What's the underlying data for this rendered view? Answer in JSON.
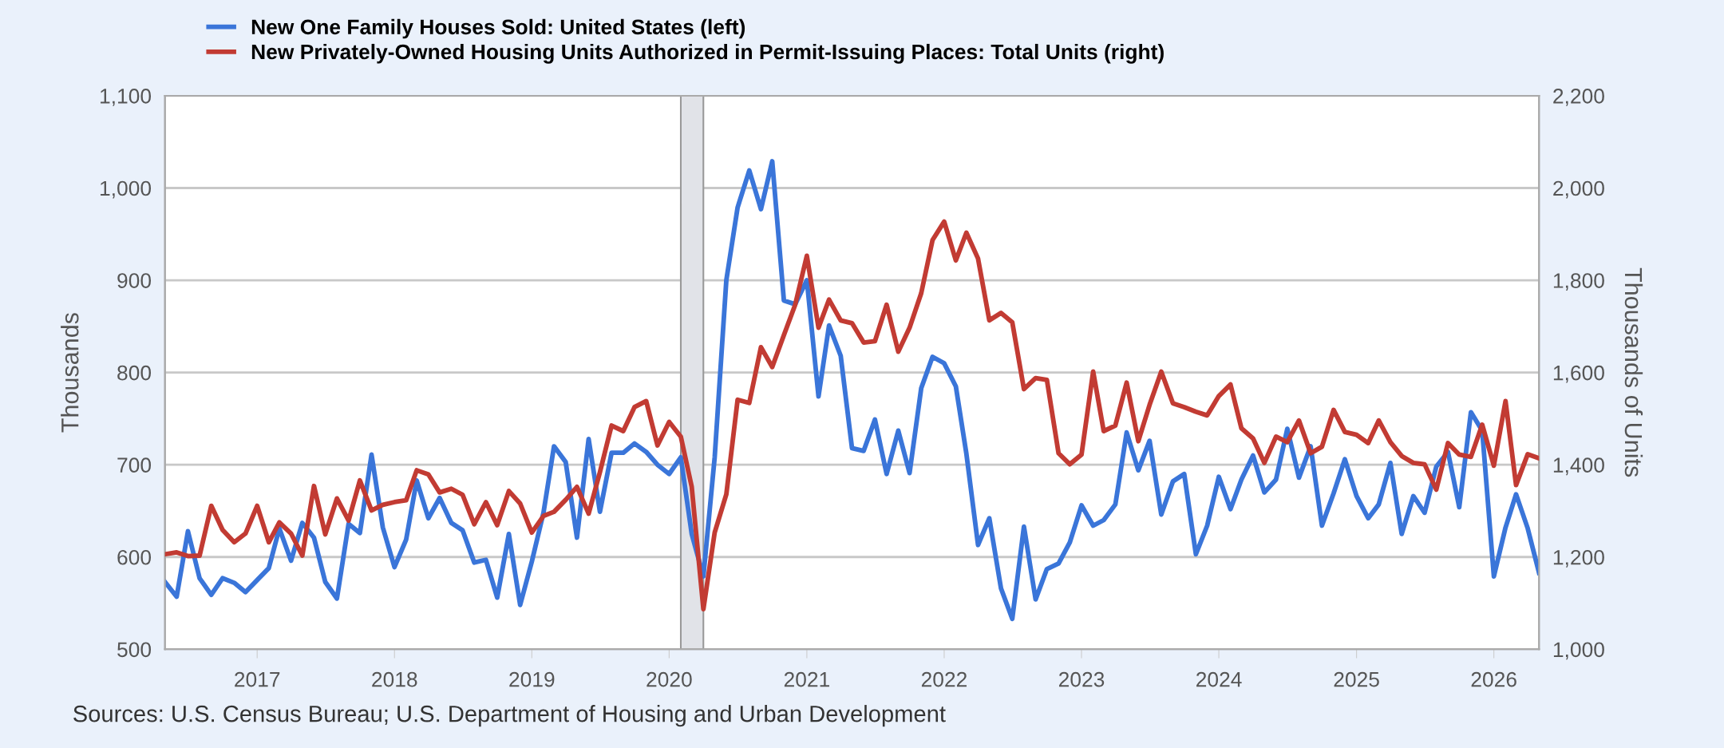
{
  "chart_data": {
    "type": "line",
    "x": [
      "2016-05",
      "2016-06",
      "2016-07",
      "2016-08",
      "2016-09",
      "2016-10",
      "2016-11",
      "2016-12",
      "2017-01",
      "2017-02",
      "2017-03",
      "2017-04",
      "2017-05",
      "2017-06",
      "2017-07",
      "2017-08",
      "2017-09",
      "2017-10",
      "2017-11",
      "2017-12",
      "2018-01",
      "2018-02",
      "2018-03",
      "2018-04",
      "2018-05",
      "2018-06",
      "2018-07",
      "2018-08",
      "2018-09",
      "2018-10",
      "2018-11",
      "2018-12",
      "2019-01",
      "2019-02",
      "2019-03",
      "2019-04",
      "2019-05",
      "2019-06",
      "2019-07",
      "2019-08",
      "2019-09",
      "2019-10",
      "2019-11",
      "2019-12",
      "2020-01",
      "2020-02",
      "2020-03",
      "2020-04",
      "2020-05",
      "2020-06",
      "2020-07",
      "2020-08",
      "2020-09",
      "2020-10",
      "2020-11",
      "2020-12",
      "2021-01",
      "2021-02",
      "2021-03",
      "2021-04",
      "2021-05",
      "2021-06",
      "2021-07",
      "2021-08",
      "2021-09",
      "2021-10",
      "2021-11",
      "2021-12",
      "2022-01",
      "2022-02",
      "2022-03",
      "2022-04",
      "2022-05",
      "2022-06",
      "2022-07",
      "2022-08",
      "2022-09",
      "2022-10",
      "2022-11",
      "2022-12",
      "2023-01",
      "2023-02",
      "2023-03",
      "2023-04",
      "2023-05",
      "2023-06",
      "2023-07",
      "2023-08",
      "2023-09",
      "2023-10",
      "2023-11",
      "2023-12",
      "2024-01",
      "2024-02",
      "2024-03",
      "2024-04",
      "2024-05",
      "2024-06",
      "2024-07",
      "2024-08",
      "2024-09",
      "2024-10",
      "2024-11",
      "2024-12",
      "2025-01",
      "2025-02",
      "2025-03",
      "2025-04",
      "2025-05",
      "2025-06",
      "2025-07",
      "2025-08",
      "2025-09",
      "2025-10",
      "2025-11",
      "2025-12",
      "2026-01",
      "2026-02",
      "2026-03",
      "2026-04",
      "2026-05"
    ],
    "series": [
      {
        "name": "New One Family Houses Sold: United States (left)",
        "color": "#3a75d9",
        "values": [
          573,
          557,
          628,
          577,
          559,
          577,
          572,
          562,
          575,
          588,
          631,
          596,
          637,
          621,
          573,
          555,
          636,
          626,
          711,
          632,
          589,
          619,
          683,
          642,
          664,
          637,
          629,
          594,
          597,
          556,
          625,
          548,
          595,
          648,
          720,
          703,
          621,
          728,
          649,
          713,
          713,
          723,
          714,
          700,
          690,
          708,
          625,
          579,
          708,
          900,
          979,
          1019,
          977,
          1029,
          878,
          874,
          900,
          774,
          851,
          818,
          718,
          715,
          749,
          690,
          737,
          691,
          783,
          817,
          810,
          785,
          712,
          613,
          642,
          566,
          533,
          633,
          554,
          587,
          593,
          616,
          656,
          634,
          640,
          657,
          735,
          694,
          726,
          646,
          682,
          690,
          603,
          634,
          687,
          652,
          684,
          710,
          670,
          684,
          739,
          686,
          720,
          634,
          669,
          706,
          666,
          642,
          657,
          702,
          625,
          666,
          648,
          698,
          714,
          654,
          757,
          737,
          579,
          632,
          668,
          631,
          583
        ]
      },
      {
        "name": "New Privately-Owned Housing Units Authorized in Permit-Issuing Places: Total Units (right)",
        "color": "#c23b33",
        "axis": "y2",
        "values": [
          1206,
          1210,
          1202,
          1203,
          1311,
          1259,
          1232,
          1251,
          1311,
          1232,
          1275,
          1251,
          1203,
          1354,
          1249,
          1327,
          1279,
          1366,
          1301,
          1313,
          1319,
          1323,
          1388,
          1379,
          1340,
          1348,
          1335,
          1271,
          1319,
          1269,
          1343,
          1316,
          1253,
          1289,
          1298,
          1324,
          1352,
          1294,
          1384,
          1485,
          1473,
          1525,
          1538,
          1442,
          1493,
          1461,
          1352,
          1087,
          1253,
          1336,
          1541,
          1534,
          1655,
          1612,
          1681,
          1747,
          1853,
          1697,
          1758,
          1713,
          1707,
          1665,
          1668,
          1747,
          1645,
          1697,
          1772,
          1887,
          1927,
          1843,
          1903,
          1847,
          1713,
          1729,
          1709,
          1564,
          1588,
          1584,
          1425,
          1401,
          1422,
          1602,
          1473,
          1485,
          1578,
          1451,
          1530,
          1602,
          1533,
          1525,
          1515,
          1507,
          1549,
          1574,
          1479,
          1457,
          1404,
          1461,
          1449,
          1496,
          1425,
          1439,
          1519,
          1471,
          1465,
          1447,
          1496,
          1449,
          1419,
          1404,
          1401,
          1346,
          1447,
          1422,
          1417,
          1487,
          1398,
          1538,
          1356,
          1423,
          1414
        ]
      }
    ],
    "ylabel": "Thousands",
    "y2label": "Thousands of Units",
    "xlim": [
      "2016-05",
      "2026-05"
    ],
    "xticks": [
      {
        "value": "2017",
        "label": "2017"
      },
      {
        "value": "2018",
        "label": "2018"
      },
      {
        "value": "2019",
        "label": "2019"
      },
      {
        "value": "2020",
        "label": "2020"
      },
      {
        "value": "2021",
        "label": "2021"
      },
      {
        "value": "2022",
        "label": "2022"
      },
      {
        "value": "2023",
        "label": "2023"
      },
      {
        "value": "2024",
        "label": "2024"
      },
      {
        "value": "2025",
        "label": "2025"
      },
      {
        "value": "2026",
        "label": "2026"
      }
    ],
    "ylim": [
      500,
      1100
    ],
    "yticks": [
      500,
      600,
      700,
      800,
      900,
      {
        "value": 1000,
        "label": "1,000"
      },
      {
        "value": 1100,
        "label": "1,100"
      }
    ],
    "y2lim": [
      1000,
      2200
    ],
    "y2ticks": [
      {
        "value": 1000,
        "label": "1,000"
      },
      {
        "value": 1200,
        "label": "1,200"
      },
      {
        "value": 1400,
        "label": "1,400"
      },
      {
        "value": 1600,
        "label": "1,600"
      },
      {
        "value": 1800,
        "label": "1,800"
      },
      {
        "value": 2000,
        "label": "2,000"
      },
      {
        "value": 2200,
        "label": "2,200"
      }
    ],
    "bands": [
      {
        "axis": "x",
        "from": "2020-02",
        "to": "2020-04",
        "color": "#e1e3e8"
      }
    ],
    "grid": "y",
    "legend": "top left",
    "line_style": "solid",
    "marker": "none",
    "annotations": [
      "Sources: U.S. Census Bureau; U.S. Department of Housing and Urban Development"
    ]
  }
}
